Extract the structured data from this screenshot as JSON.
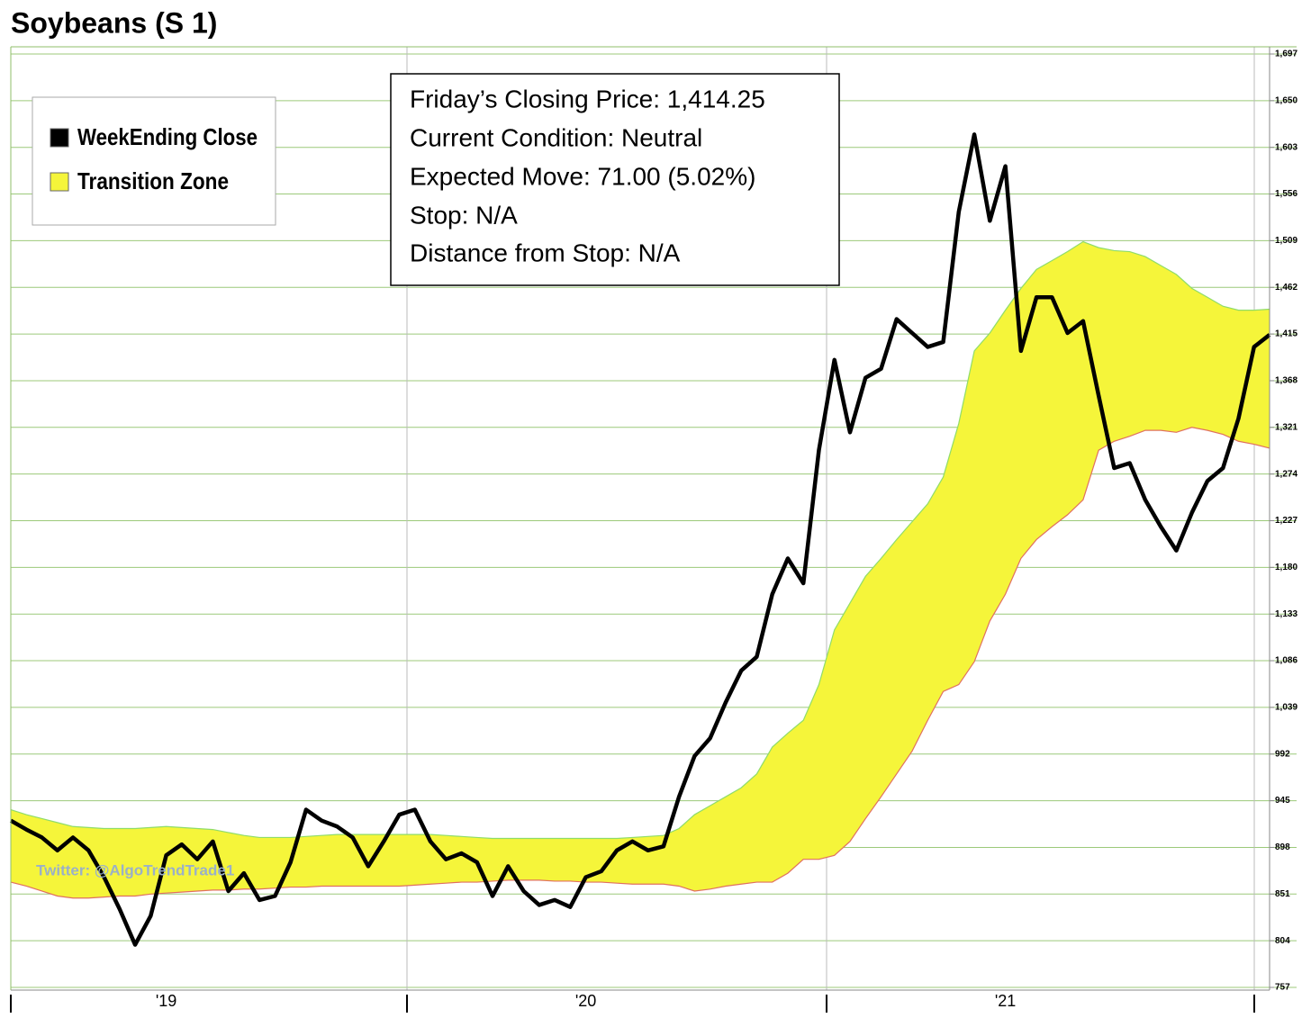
{
  "chart_data": {
    "type": "line",
    "title": "Soybeans (S 1)",
    "annotations": [
      "Friday’s Closing Price: 1,414.25",
      "Current Condition: Neutral",
      "Expected Move: 71.00 (5.02%)",
      "Stop: N/A",
      "Distance from Stop: N/A"
    ],
    "watermark": "Twitter: @AlgoTrendTrade1",
    "categories": [
      null,
      null,
      null,
      null,
      null,
      null,
      null,
      null,
      null,
      null,
      "'19",
      null,
      null,
      null,
      null,
      null,
      null,
      null,
      null,
      null,
      null,
      null,
      null,
      null,
      null,
      null,
      null,
      null,
      null,
      null,
      null,
      null,
      null,
      null,
      null,
      null,
      null,
      "'20",
      null,
      null,
      null,
      null,
      null,
      null,
      null,
      null,
      null,
      null,
      null,
      null,
      null,
      null,
      null,
      null,
      null,
      null,
      null,
      null,
      null,
      null,
      null,
      null,
      null,
      null,
      "'21",
      null,
      null,
      null,
      null,
      null,
      null,
      null,
      null,
      null,
      null,
      null,
      null,
      null,
      null,
      null,
      null,
      null
    ],
    "series": [
      {
        "name": "WeekEnding Close",
        "color": "#000000",
        "values": [
          925,
          916,
          908,
          895,
          908,
          895,
          868,
          836,
          800,
          829,
          890,
          901,
          886,
          904,
          854,
          872,
          845,
          849,
          883,
          936,
          925,
          919,
          908,
          879,
          904,
          931,
          936,
          904,
          886,
          892,
          883,
          849,
          879,
          854,
          840,
          845,
          838,
          868,
          874,
          895,
          904,
          895,
          899,
          949,
          990,
          1008,
          1044,
          1076,
          1090,
          1153,
          1189,
          1164,
          1298,
          1389,
          1316,
          1371,
          1380,
          1430,
          1416,
          1402,
          1407,
          1538,
          1616,
          1529,
          1584,
          1398,
          1452,
          1452,
          1416,
          1428,
          1353,
          1280,
          1285,
          1248,
          1221,
          1197,
          1235,
          1267,
          1280,
          1330,
          1402,
          1414.25
        ]
      },
      {
        "name": "Transition Zone",
        "color": "#f5f53a",
        "upper_color": "#8fdc6a",
        "lower_color": "#e07060",
        "upper": [
          936,
          931,
          927,
          923,
          919,
          918,
          917,
          917,
          917,
          918,
          919,
          918,
          917,
          916,
          913,
          910,
          908,
          908,
          908,
          909,
          910,
          911,
          911,
          911,
          911,
          911,
          911,
          911,
          910,
          909,
          908,
          907,
          907,
          907,
          907,
          907,
          907,
          907,
          907,
          907,
          908,
          909,
          910,
          917,
          931,
          940,
          949,
          958,
          972,
          999,
          1013,
          1026,
          1062,
          1117,
          1144,
          1171,
          1189,
          1208,
          1226,
          1244,
          1271,
          1325,
          1398,
          1416,
          1439,
          1461,
          1480,
          1489,
          1498,
          1508,
          1502,
          1499,
          1498,
          1493,
          1484,
          1475,
          1461,
          1452,
          1443,
          1439,
          1439,
          1440
        ],
        "lower": [
          863,
          859,
          854,
          849,
          847,
          847,
          848,
          849,
          849,
          851,
          852,
          853,
          854,
          855,
          855,
          856,
          856,
          857,
          858,
          858,
          859,
          859,
          859,
          859,
          859,
          859,
          860,
          861,
          862,
          863,
          863,
          864,
          865,
          865,
          865,
          864,
          864,
          863,
          863,
          862,
          861,
          861,
          861,
          859,
          854,
          856,
          859,
          861,
          863,
          863,
          872,
          886,
          886,
          890,
          904,
          927,
          949,
          972,
          995,
          1026,
          1055,
          1062,
          1085,
          1126,
          1153,
          1189,
          1208,
          1221,
          1233,
          1248,
          1298,
          1307,
          1312,
          1318,
          1318,
          1316,
          1321,
          1318,
          1314,
          1307,
          1304,
          1300
        ]
      }
    ],
    "ylim": [
      757,
      1697
    ],
    "yticks": [
      757,
      804,
      851,
      898,
      945,
      992,
      {
        "value": 1039,
        "label": "1,039"
      },
      {
        "value": 1086,
        "label": "1,086"
      },
      {
        "value": 1133,
        "label": "1,133"
      },
      {
        "value": 1180,
        "label": "1,180"
      },
      {
        "value": 1227,
        "label": "1,227"
      },
      {
        "value": 1274,
        "label": "1,274"
      },
      {
        "value": 1321,
        "label": "1,321"
      },
      {
        "value": 1368,
        "label": "1,368"
      },
      {
        "value": 1415,
        "label": "1,415"
      },
      {
        "value": 1462,
        "label": "1,462"
      },
      {
        "value": 1509,
        "label": "1,509"
      },
      {
        "value": 1556,
        "label": "1,556"
      },
      {
        "value": 1603,
        "label": "1,603"
      },
      {
        "value": 1650,
        "label": "1,650"
      },
      {
        "value": 1697,
        "label": "1,697"
      }
    ],
    "grid": true
  }
}
